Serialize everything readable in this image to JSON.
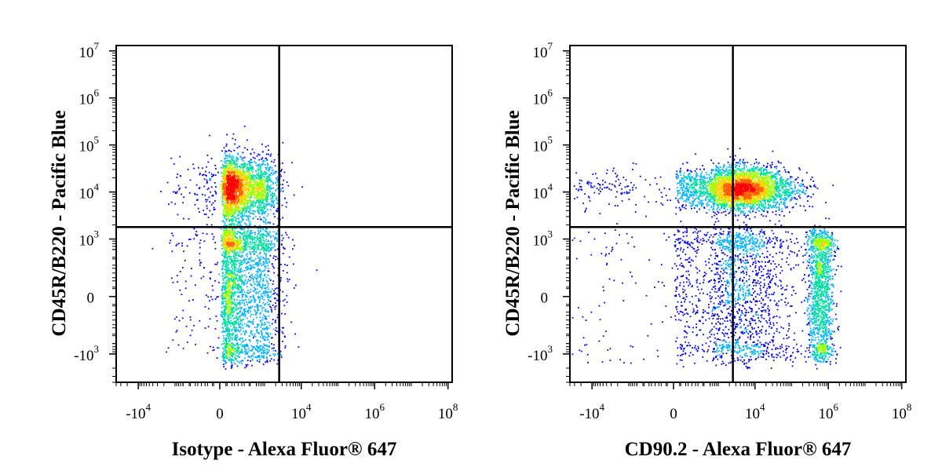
{
  "chart_data": [
    {
      "type": "scatter",
      "title": "",
      "xlabel": "Isotype - Alexa Fluor® 647",
      "ylabel": "CD45R/B220 - Pacific Blue",
      "scale": "biexponential",
      "x_ticks": [
        {
          "value": -10000,
          "base": "-10",
          "exp": "4"
        },
        {
          "value": 0,
          "base": "0",
          "exp": ""
        },
        {
          "value": 10000,
          "base": "10",
          "exp": "4"
        },
        {
          "value": 1000000,
          "base": "10",
          "exp": "6"
        },
        {
          "value": 100000000,
          "base": "10",
          "exp": "8"
        }
      ],
      "y_ticks": [
        {
          "value": 10000000,
          "base": "10",
          "exp": "7"
        },
        {
          "value": 1000000,
          "base": "10",
          "exp": "6"
        },
        {
          "value": 100000,
          "base": "10",
          "exp": "5"
        },
        {
          "value": 10000,
          "base": "10",
          "exp": "4"
        },
        {
          "value": 1000,
          "base": "10",
          "exp": "3"
        },
        {
          "value": 0,
          "base": "0",
          "exp": ""
        },
        {
          "value": -1000,
          "base": "-10",
          "exp": "3"
        }
      ],
      "gate": {
        "x": 2500,
        "y": 1800
      },
      "populations": [
        {
          "cx": 300,
          "cy": 12000,
          "sx": 0.8,
          "sy": 0.7,
          "n": 2400,
          "kind": "xlog-ylog"
        },
        {
          "cx": 300,
          "cy": 150,
          "sx": 0.9,
          "sy": 1.0,
          "n": 2600,
          "kind": "xlog-ylin"
        }
      ],
      "colors": [
        "#0000ff",
        "#00b4ff",
        "#00e0a0",
        "#a0ff00",
        "#ffd000",
        "#ff6000",
        "#ff0000"
      ]
    },
    {
      "type": "scatter",
      "title": "",
      "xlabel": "CD90.2 - Alexa Fluor® 647",
      "ylabel": "CD45R/B220 - Pacific Blue",
      "scale": "biexponential",
      "x_ticks": [
        {
          "value": -10000,
          "base": "-10",
          "exp": "4"
        },
        {
          "value": 0,
          "base": "0",
          "exp": ""
        },
        {
          "value": 10000,
          "base": "10",
          "exp": "4"
        },
        {
          "value": 1000000,
          "base": "10",
          "exp": "6"
        },
        {
          "value": 100000000,
          "base": "10",
          "exp": "8"
        }
      ],
      "y_ticks": [
        {
          "value": 10000000,
          "base": "10",
          "exp": "7"
        },
        {
          "value": 1000000,
          "base": "10",
          "exp": "6"
        },
        {
          "value": 100000,
          "base": "10",
          "exp": "5"
        },
        {
          "value": 10000,
          "base": "10",
          "exp": "4"
        },
        {
          "value": 1000,
          "base": "10",
          "exp": "3"
        },
        {
          "value": 0,
          "base": "0",
          "exp": ""
        },
        {
          "value": -1000,
          "base": "-10",
          "exp": "3"
        }
      ],
      "gate": {
        "x": 2500,
        "y": 1800
      },
      "populations": [
        {
          "cx": 4000,
          "cy": 12000,
          "sx": 1.4,
          "sy": 0.45,
          "n": 3400,
          "kind": "xlog-ylog"
        },
        {
          "cx": 600000,
          "cy": 100,
          "sx": 0.35,
          "sy": 0.9,
          "n": 1500,
          "kind": "xlog-ylin"
        },
        {
          "cx": 3000,
          "cy": 100,
          "sx": 1.6,
          "sy": 1.0,
          "n": 1800,
          "kind": "xlog-ylin"
        }
      ],
      "colors": [
        "#0000ff",
        "#00b4ff",
        "#00e0a0",
        "#a0ff00",
        "#ffd000",
        "#ff6000",
        "#ff0000"
      ]
    }
  ]
}
